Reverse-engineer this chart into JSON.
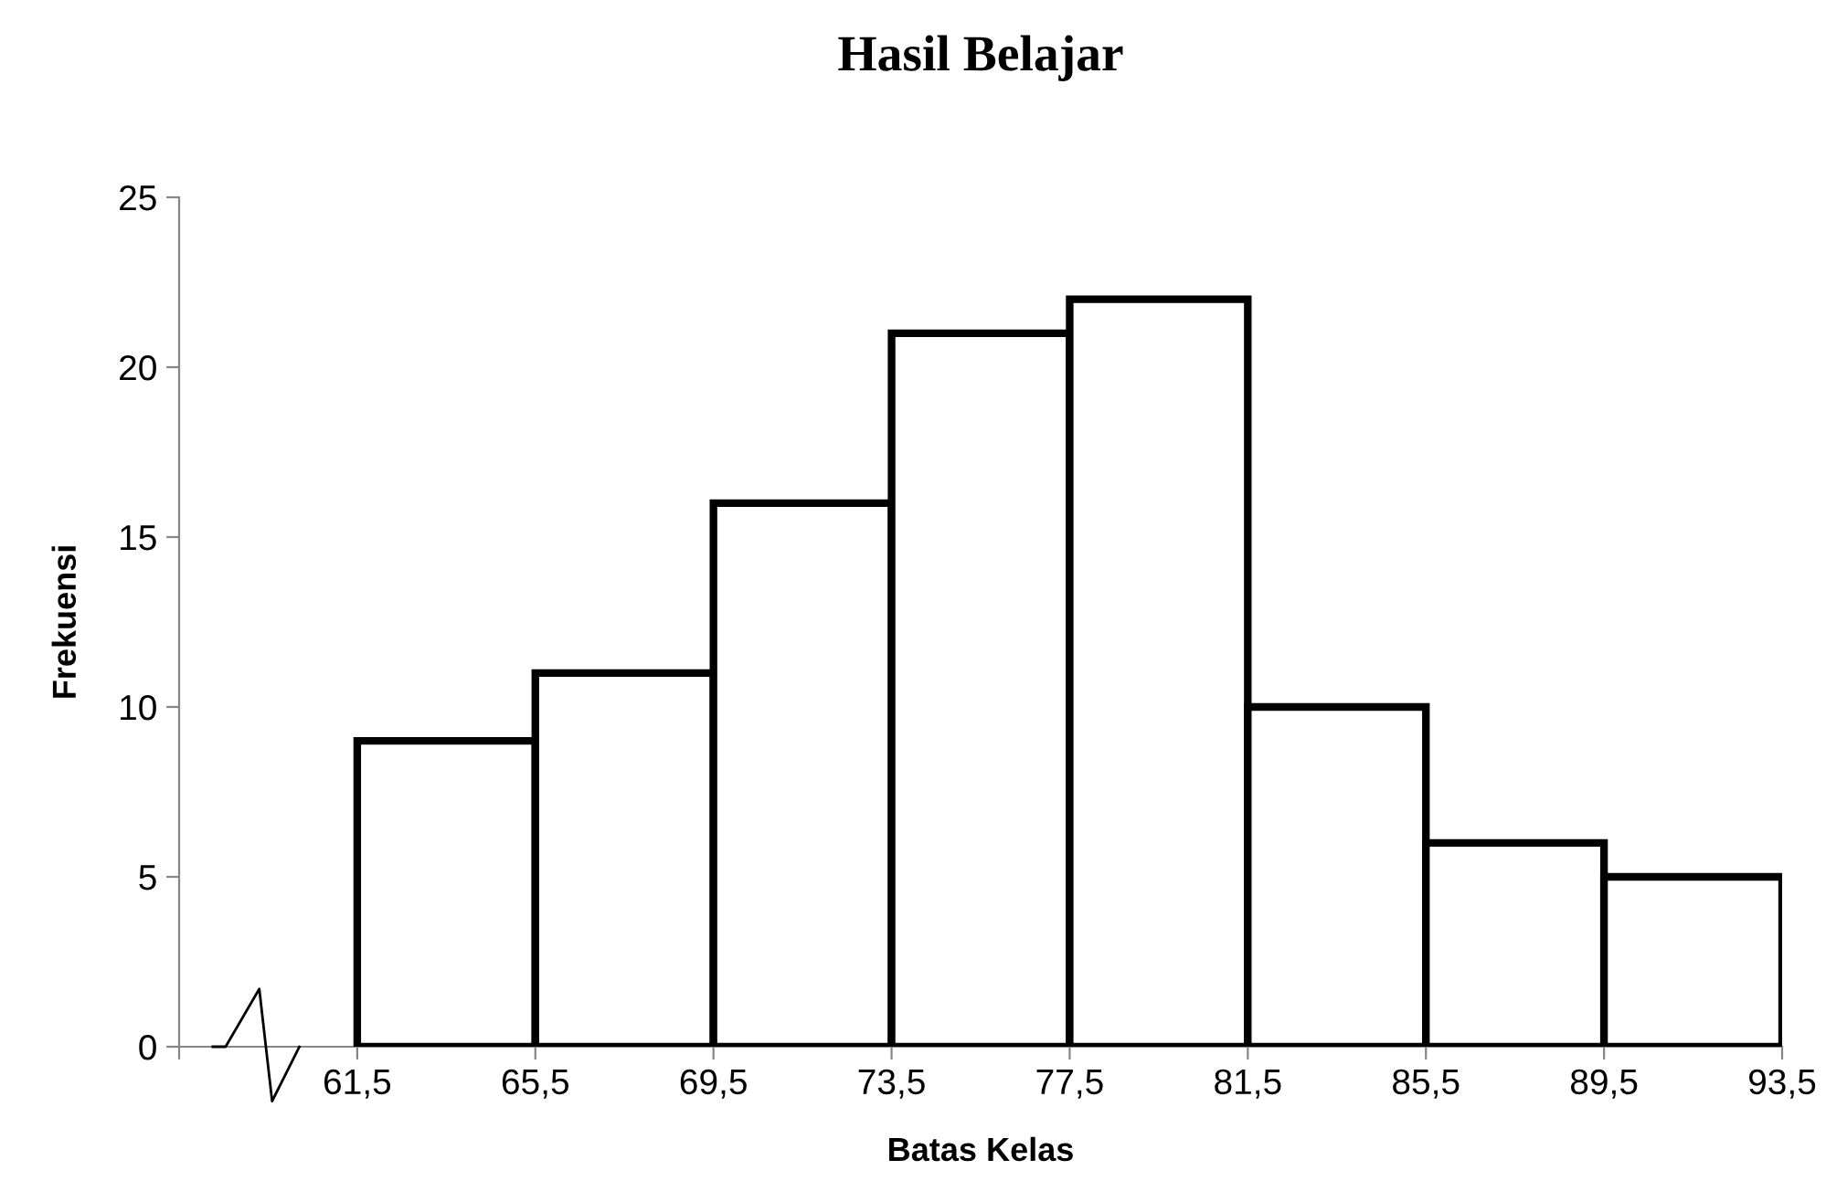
{
  "chart_data": {
    "type": "histogram",
    "title": "Hasil Belajar",
    "xlabel": "Batas Kelas",
    "ylabel": "Frekuensi",
    "bins": [
      61.5,
      65.5,
      69.5,
      73.5,
      77.5,
      81.5,
      85.5,
      89.5,
      93.5
    ],
    "values": [
      9,
      11,
      16,
      21,
      22,
      10,
      6,
      5
    ],
    "color": "#ffffff",
    "xlim": [
      57.5,
      93.5
    ],
    "xticks": [
      {
        "value": 57.5,
        "label": null
      },
      {
        "value": 61.5,
        "label": "61,5"
      },
      {
        "value": 65.5,
        "label": "65,5"
      },
      {
        "value": 69.5,
        "label": "69,5"
      },
      {
        "value": 73.5,
        "label": "73,5"
      },
      {
        "value": 77.5,
        "label": "77,5"
      },
      {
        "value": 81.5,
        "label": "81,5"
      },
      {
        "value": 85.5,
        "label": "85,5"
      },
      {
        "value": 89.5,
        "label": "89,5"
      },
      {
        "value": 93.5,
        "label": "93,5"
      }
    ],
    "ylim": [
      0,
      25
    ],
    "yticks": [
      0,
      5,
      10,
      15,
      20,
      25
    ],
    "grid": false,
    "legend": false
  }
}
